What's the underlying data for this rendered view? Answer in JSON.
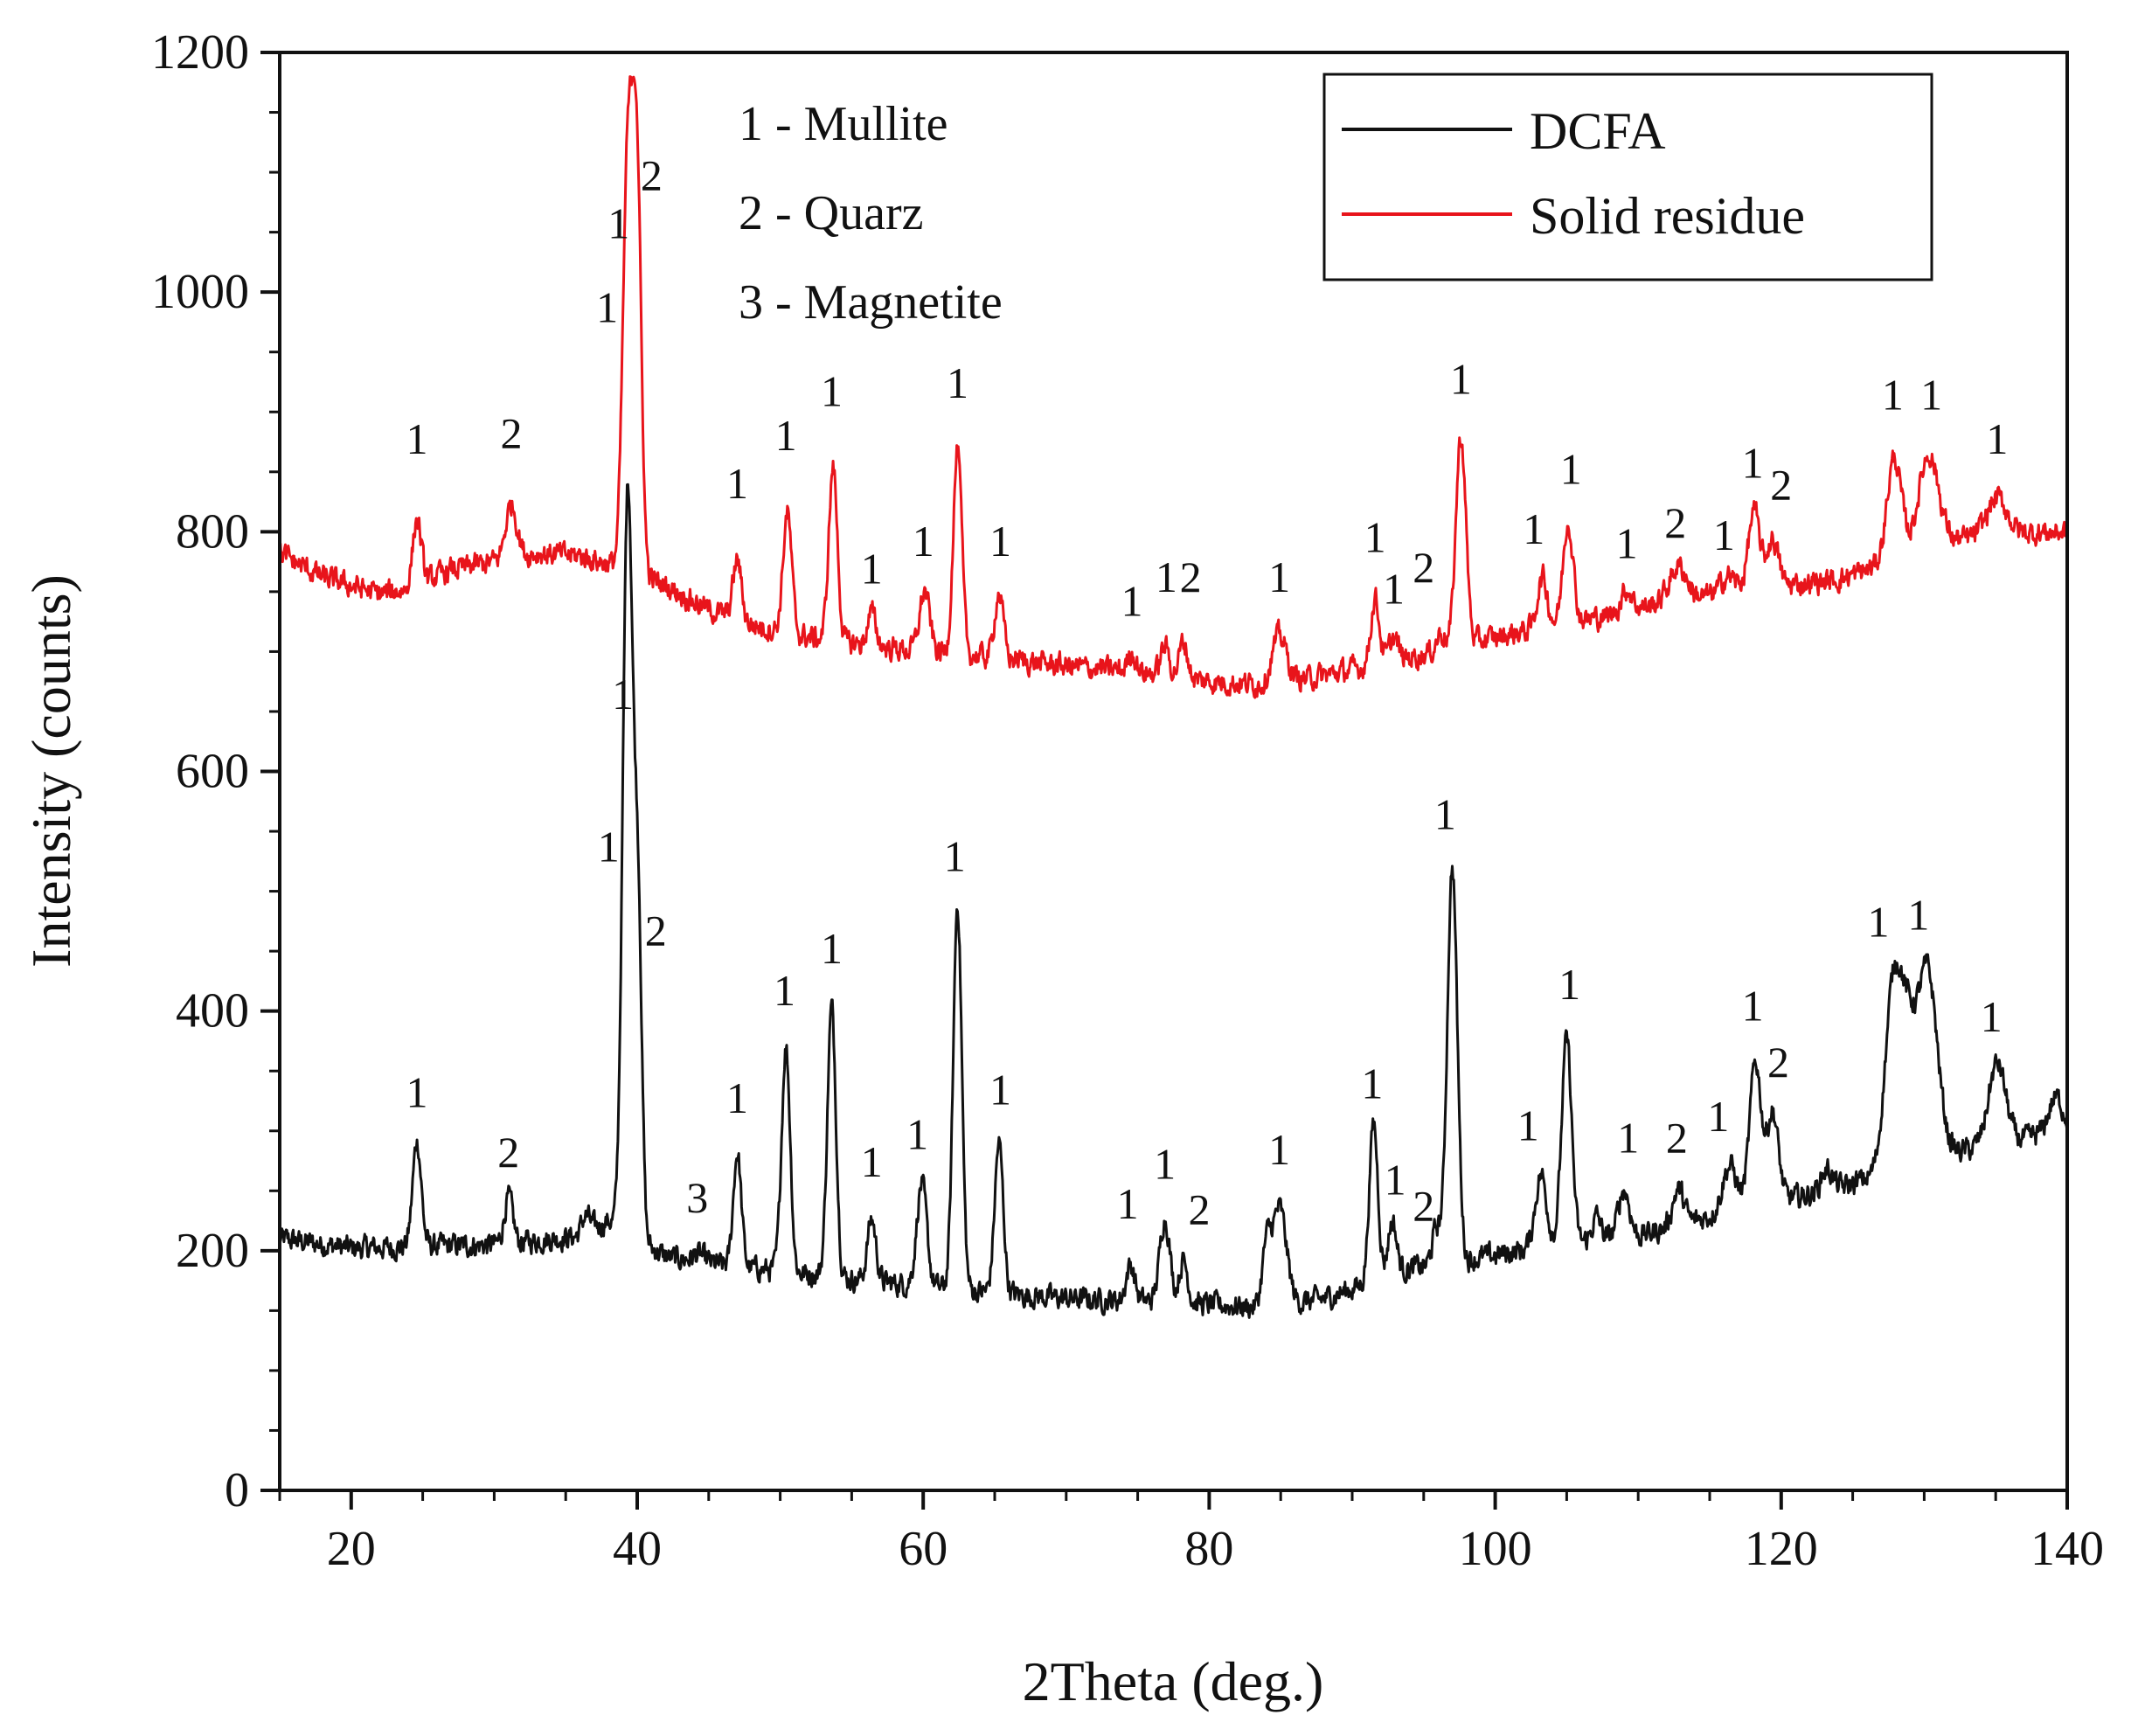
{
  "chart_data": {
    "type": "line",
    "title": "",
    "xlabel": "2Theta (deg.)",
    "ylabel": "Intensity (counts)",
    "xlim": [
      15,
      140
    ],
    "ylim": [
      0,
      1200
    ],
    "x_ticks": [
      20,
      40,
      60,
      80,
      100,
      120,
      140
    ],
    "y_ticks": [
      0,
      200,
      400,
      600,
      800,
      1000,
      1200
    ],
    "x_tick_labels": [
      "20",
      "40",
      "60",
      "80",
      "100",
      "120",
      "140"
    ],
    "y_tick_labels": [
      "0",
      "200",
      "400",
      "600",
      "800",
      "1000",
      "1200"
    ],
    "legend_position": "top-right",
    "phase_key": [
      "1 - Mullite",
      "2 - Quarz",
      "3 - Magnetite"
    ],
    "series": [
      {
        "name": "DCFA",
        "color": "#111111",
        "baseline": [
          [
            15,
            210
          ],
          [
            20,
            202
          ],
          [
            30,
            205
          ],
          [
            36,
            212
          ],
          [
            38,
            225
          ],
          [
            42,
            195
          ],
          [
            46,
            188
          ],
          [
            50,
            183
          ],
          [
            56,
            175
          ],
          [
            62,
            168
          ],
          [
            70,
            160
          ],
          [
            78,
            157
          ],
          [
            84,
            152
          ],
          [
            88,
            160
          ],
          [
            94,
            185
          ],
          [
            98,
            192
          ],
          [
            104,
            205
          ],
          [
            110,
            212
          ],
          [
            116,
            232
          ],
          [
            120,
            242
          ],
          [
            124,
            252
          ],
          [
            128,
            268
          ],
          [
            132,
            282
          ],
          [
            136,
            290
          ],
          [
            140,
            302
          ]
        ],
        "peaks": [
          [
            24.6,
            88,
            0.3
          ],
          [
            31.0,
            38,
            0.3
          ],
          [
            36.4,
            15,
            0.3
          ],
          [
            39.2,
            290,
            0.3
          ],
          [
            39.5,
            405,
            0.35
          ],
          [
            40.1,
            220,
            0.25
          ],
          [
            44.3,
            6,
            0.4
          ],
          [
            47.0,
            95,
            0.28
          ],
          [
            50.4,
            188,
            0.3
          ],
          [
            53.6,
            225,
            0.3
          ],
          [
            56.4,
            52,
            0.3
          ],
          [
            59.9,
            85,
            0.35
          ],
          [
            62.4,
            322,
            0.3
          ],
          [
            65.3,
            125,
            0.3
          ],
          [
            74.5,
            30,
            0.3
          ],
          [
            76.9,
            70,
            0.35
          ],
          [
            78.2,
            35,
            0.3
          ],
          [
            84.0,
            45,
            0.3
          ],
          [
            84.9,
            82,
            0.5
          ],
          [
            91.5,
            132,
            0.3
          ],
          [
            92.8,
            45,
            0.3
          ],
          [
            95.9,
            30,
            0.3
          ],
          [
            97.0,
            330,
            0.35
          ],
          [
            103.2,
            60,
            0.4
          ],
          [
            105.0,
            170,
            0.35
          ],
          [
            107.1,
            20,
            0.3
          ],
          [
            109.0,
            40,
            0.4
          ],
          [
            112.8,
            30,
            0.4
          ],
          [
            116.4,
            38,
            0.5
          ],
          [
            118.2,
            120,
            0.4
          ],
          [
            119.4,
            75,
            0.4
          ],
          [
            123.2,
            18,
            0.4
          ],
          [
            127.9,
            160,
            0.6
          ],
          [
            128.9,
            75,
            0.5
          ],
          [
            130.2,
            160,
            0.7
          ],
          [
            135.1,
            68,
            0.6
          ],
          [
            139.2,
            28,
            0.5
          ]
        ]
      },
      {
        "name": "Solid residue",
        "color": "#e8141b",
        "baseline": [
          [
            15,
            782
          ],
          [
            18,
            762
          ],
          [
            22,
            748
          ],
          [
            24,
            752
          ],
          [
            27,
            768
          ],
          [
            30,
            775
          ],
          [
            33,
            782
          ],
          [
            36,
            780
          ],
          [
            39,
            770
          ],
          [
            42,
            755
          ],
          [
            45,
            735
          ],
          [
            48,
            722
          ],
          [
            52,
            712
          ],
          [
            56,
            705
          ],
          [
            60,
            700
          ],
          [
            65,
            695
          ],
          [
            70,
            688
          ],
          [
            75,
            683
          ],
          [
            80,
            675
          ],
          [
            84,
            672
          ],
          [
            88,
            680
          ],
          [
            92,
            690
          ],
          [
            96,
            700
          ],
          [
            100,
            712
          ],
          [
            104,
            722
          ],
          [
            108,
            730
          ],
          [
            112,
            742
          ],
          [
            116,
            748
          ],
          [
            120,
            755
          ],
          [
            124,
            760
          ],
          [
            127,
            772
          ],
          [
            131,
            790
          ],
          [
            135,
            798
          ],
          [
            140,
            800
          ]
        ],
        "peaks": [
          [
            24.6,
            55,
            0.3
          ],
          [
            31.2,
            45,
            0.4
          ],
          [
            39.2,
            150,
            0.3
          ],
          [
            39.5,
            240,
            0.35
          ],
          [
            40.0,
            290,
            0.3
          ],
          [
            47.0,
            50,
            0.3
          ],
          [
            50.5,
            100,
            0.3
          ],
          [
            53.7,
            145,
            0.3
          ],
          [
            56.4,
            28,
            0.3
          ],
          [
            60.1,
            50,
            0.35
          ],
          [
            62.4,
            170,
            0.3
          ],
          [
            65.3,
            55,
            0.3
          ],
          [
            74.6,
            15,
            0.3
          ],
          [
            76.9,
            25,
            0.3
          ],
          [
            78.2,
            30,
            0.3
          ],
          [
            84.9,
            40,
            0.5
          ],
          [
            91.6,
            55,
            0.3
          ],
          [
            92.9,
            20,
            0.3
          ],
          [
            96.2,
            15,
            0.3
          ],
          [
            97.6,
            175,
            0.35
          ],
          [
            103.3,
            42,
            0.35
          ],
          [
            105.1,
            85,
            0.35
          ],
          [
            109.2,
            18,
            0.4
          ],
          [
            112.8,
            28,
            0.6
          ],
          [
            116.3,
            15,
            0.5
          ],
          [
            118.1,
            65,
            0.4
          ],
          [
            119.4,
            40,
            0.4
          ],
          [
            127.9,
            85,
            0.5
          ],
          [
            130.3,
            78,
            0.7
          ],
          [
            135.1,
            30,
            0.7
          ]
        ]
      }
    ],
    "annotations": [
      {
        "series": "Solid residue",
        "text": "1",
        "x": 24.6,
        "y": 865
      },
      {
        "series": "Solid residue",
        "text": "2",
        "x": 31.2,
        "y": 870
      },
      {
        "series": "Solid residue",
        "text": "1",
        "x": 37.9,
        "y": 975
      },
      {
        "series": "Solid residue",
        "text": "1",
        "x": 38.7,
        "y": 1045
      },
      {
        "series": "Solid residue",
        "text": "2",
        "x": 41.0,
        "y": 1085
      },
      {
        "series": "Solid residue",
        "text": "1",
        "x": 47.0,
        "y": 828
      },
      {
        "series": "Solid residue",
        "text": "1",
        "x": 50.4,
        "y": 868
      },
      {
        "series": "Solid residue",
        "text": "1",
        "x": 53.6,
        "y": 905
      },
      {
        "series": "Solid residue",
        "text": "1",
        "x": 56.4,
        "y": 757
      },
      {
        "series": "Solid residue",
        "text": "1",
        "x": 60.0,
        "y": 780
      },
      {
        "series": "Solid residue",
        "text": "1",
        "x": 62.4,
        "y": 912
      },
      {
        "series": "Solid residue",
        "text": "1",
        "x": 65.4,
        "y": 780
      },
      {
        "series": "Solid residue",
        "text": "1",
        "x": 74.6,
        "y": 730
      },
      {
        "series": "Solid residue",
        "text": "1",
        "x": 77.0,
        "y": 750
      },
      {
        "series": "Solid residue",
        "text": "2",
        "x": 78.7,
        "y": 750
      },
      {
        "series": "Solid residue",
        "text": "1",
        "x": 84.9,
        "y": 750
      },
      {
        "series": "Solid residue",
        "text": "1",
        "x": 91.6,
        "y": 783
      },
      {
        "series": "Solid residue",
        "text": "1",
        "x": 92.9,
        "y": 740
      },
      {
        "series": "Solid residue",
        "text": "2",
        "x": 95.0,
        "y": 758
      },
      {
        "series": "Solid residue",
        "text": "1",
        "x": 97.6,
        "y": 915
      },
      {
        "series": "Solid residue",
        "text": "1",
        "x": 102.7,
        "y": 790
      },
      {
        "series": "Solid residue",
        "text": "1",
        "x": 105.3,
        "y": 840
      },
      {
        "series": "Solid residue",
        "text": "1",
        "x": 109.2,
        "y": 778
      },
      {
        "series": "Solid residue",
        "text": "2",
        "x": 112.6,
        "y": 795
      },
      {
        "series": "Solid residue",
        "text": "1",
        "x": 116.0,
        "y": 785
      },
      {
        "series": "Solid residue",
        "text": "1",
        "x": 118.0,
        "y": 845
      },
      {
        "series": "Solid residue",
        "text": "2",
        "x": 120.0,
        "y": 827
      },
      {
        "series": "Solid residue",
        "text": "1",
        "x": 127.8,
        "y": 902
      },
      {
        "series": "Solid residue",
        "text": "1",
        "x": 130.5,
        "y": 902
      },
      {
        "series": "Solid residue",
        "text": "1",
        "x": 135.1,
        "y": 865
      },
      {
        "series": "DCFA",
        "text": "1",
        "x": 24.6,
        "y": 320
      },
      {
        "series": "DCFA",
        "text": "2",
        "x": 31.0,
        "y": 270
      },
      {
        "series": "DCFA",
        "text": "3",
        "x": 44.2,
        "y": 232
      },
      {
        "series": "DCFA",
        "text": "1",
        "x": 38.0,
        "y": 525
      },
      {
        "series": "DCFA",
        "text": "1",
        "x": 39.0,
        "y": 652
      },
      {
        "series": "DCFA",
        "text": "2",
        "x": 41.3,
        "y": 455
      },
      {
        "series": "DCFA",
        "text": "1",
        "x": 47.0,
        "y": 315
      },
      {
        "series": "DCFA",
        "text": "1",
        "x": 50.3,
        "y": 405
      },
      {
        "series": "DCFA",
        "text": "1",
        "x": 53.6,
        "y": 440
      },
      {
        "series": "DCFA",
        "text": "1",
        "x": 56.4,
        "y": 262
      },
      {
        "series": "DCFA",
        "text": "1",
        "x": 59.6,
        "y": 285
      },
      {
        "series": "DCFA",
        "text": "1",
        "x": 62.2,
        "y": 517
      },
      {
        "series": "DCFA",
        "text": "1",
        "x": 65.4,
        "y": 322
      },
      {
        "series": "DCFA",
        "text": "1",
        "x": 74.3,
        "y": 227
      },
      {
        "series": "DCFA",
        "text": "1",
        "x": 76.9,
        "y": 260
      },
      {
        "series": "DCFA",
        "text": "2",
        "x": 79.3,
        "y": 222
      },
      {
        "series": "DCFA",
        "text": "1",
        "x": 84.9,
        "y": 272
      },
      {
        "series": "DCFA",
        "text": "1",
        "x": 91.4,
        "y": 327
      },
      {
        "series": "DCFA",
        "text": "1",
        "x": 93.0,
        "y": 247
      },
      {
        "series": "DCFA",
        "text": "2",
        "x": 95.0,
        "y": 225
      },
      {
        "series": "DCFA",
        "text": "1",
        "x": 96.5,
        "y": 552
      },
      {
        "series": "DCFA",
        "text": "1",
        "x": 102.3,
        "y": 292
      },
      {
        "series": "DCFA",
        "text": "1",
        "x": 105.2,
        "y": 410
      },
      {
        "series": "DCFA",
        "text": "1",
        "x": 109.3,
        "y": 282
      },
      {
        "series": "DCFA",
        "text": "2",
        "x": 112.7,
        "y": 282
      },
      {
        "series": "DCFA",
        "text": "1",
        "x": 115.6,
        "y": 300
      },
      {
        "series": "DCFA",
        "text": "1",
        "x": 118.0,
        "y": 392
      },
      {
        "series": "DCFA",
        "text": "2",
        "x": 119.8,
        "y": 345
      },
      {
        "series": "DCFA",
        "text": "1",
        "x": 126.8,
        "y": 462
      },
      {
        "series": "DCFA",
        "text": "1",
        "x": 129.6,
        "y": 468
      },
      {
        "series": "DCFA",
        "text": "1",
        "x": 134.7,
        "y": 383
      }
    ]
  }
}
